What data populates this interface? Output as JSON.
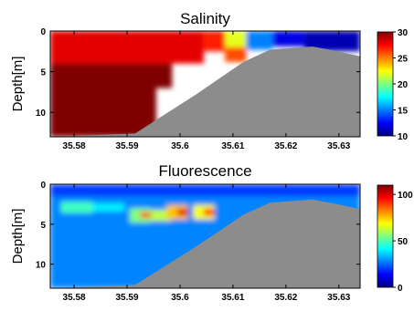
{
  "chart_data": [
    {
      "type": "heatmap",
      "title": "Salinity",
      "ylabel": "Depth[m]",
      "xlabel": "",
      "x_ticks": [
        35.58,
        35.59,
        35.6,
        35.61,
        35.62,
        35.63
      ],
      "x_tick_labels": [
        "35.58",
        "35.59",
        "35.6",
        "35.61",
        "35.62",
        "35.63"
      ],
      "xlim": [
        35.5755,
        35.634
      ],
      "y_ticks": [
        0,
        5,
        10
      ],
      "y_tick_labels": [
        "0",
        "5",
        "10"
      ],
      "ylim": [
        0,
        13
      ],
      "y_inverted": true,
      "colorbar": {
        "min": 10,
        "max": 30,
        "ticks": [
          10,
          15,
          20,
          25,
          30
        ],
        "tick_labels": [
          "10",
          "15",
          "20",
          "25",
          "30"
        ]
      },
      "seafloor": [
        {
          "x": 35.5755,
          "depth": 13
        },
        {
          "x": 35.5915,
          "depth": 12.6
        },
        {
          "x": 35.603,
          "depth": 7.8
        },
        {
          "x": 35.612,
          "depth": 3.8
        },
        {
          "x": 35.617,
          "depth": 2.3
        },
        {
          "x": 35.625,
          "depth": 1.9
        },
        {
          "x": 35.629,
          "depth": 2.4
        },
        {
          "x": 35.634,
          "depth": 3.1
        }
      ],
      "cells": [
        {
          "x0": 35.5755,
          "x1": 35.6045,
          "d0": 0,
          "d1": 4,
          "v": 28
        },
        {
          "x0": 35.5755,
          "x1": 35.5985,
          "d0": 4,
          "d1": 7,
          "v": 30
        },
        {
          "x0": 35.5755,
          "x1": 35.5955,
          "d0": 7,
          "d1": 13,
          "v": 30.5
        },
        {
          "x0": 35.6045,
          "x1": 35.6085,
          "d0": 0,
          "d1": 2.5,
          "v": 27
        },
        {
          "x0": 35.6085,
          "x1": 35.6125,
          "d0": 0,
          "d1": 2,
          "v": 22
        },
        {
          "x0": 35.6085,
          "x1": 35.6125,
          "d0": 2,
          "d1": 3.8,
          "v": 26
        },
        {
          "x0": 35.6125,
          "x1": 35.6175,
          "d0": 0,
          "d1": 2.3,
          "v": 15
        },
        {
          "x0": 35.6175,
          "x1": 35.6235,
          "d0": 0,
          "d1": 1.9,
          "v": 12
        },
        {
          "x0": 35.6235,
          "x1": 35.634,
          "d0": 0,
          "d1": 2.5,
          "v": 11
        }
      ]
    },
    {
      "type": "heatmap",
      "title": "Fluorescence",
      "ylabel": "Depth[m]",
      "xlabel": "",
      "x_ticks": [
        35.58,
        35.59,
        35.6,
        35.61,
        35.62,
        35.63
      ],
      "x_tick_labels": [
        "35.58",
        "35.59",
        "35.6",
        "35.61",
        "35.62",
        "35.63"
      ],
      "xlim": [
        35.5755,
        35.634
      ],
      "y_ticks": [
        0,
        5,
        10
      ],
      "y_tick_labels": [
        "0",
        "5",
        "10"
      ],
      "ylim": [
        0,
        13
      ],
      "y_inverted": true,
      "colorbar": {
        "min": 0,
        "max": 110,
        "ticks": [
          0,
          50,
          100
        ],
        "tick_labels": [
          "0",
          "50",
          "100"
        ]
      },
      "seafloor": [
        {
          "x": 35.5755,
          "depth": 13
        },
        {
          "x": 35.5915,
          "depth": 12.6
        },
        {
          "x": 35.603,
          "depth": 7.8
        },
        {
          "x": 35.612,
          "depth": 3.8
        },
        {
          "x": 35.617,
          "depth": 2.3
        },
        {
          "x": 35.625,
          "depth": 1.9
        },
        {
          "x": 35.629,
          "depth": 2.4
        },
        {
          "x": 35.634,
          "depth": 3.1
        }
      ],
      "cells": [
        {
          "x0": 35.5755,
          "x1": 35.634,
          "d0": 0,
          "d1": 13,
          "v": 28
        },
        {
          "x0": 35.5755,
          "x1": 35.634,
          "d0": 0,
          "d1": 1.5,
          "v": 20
        },
        {
          "x0": 35.5775,
          "x1": 35.5835,
          "d0": 2.2,
          "d1": 3.6,
          "v": 48
        },
        {
          "x0": 35.5835,
          "x1": 35.5895,
          "d0": 2.4,
          "d1": 3.4,
          "v": 40
        },
        {
          "x0": 35.5905,
          "x1": 35.5945,
          "d0": 3,
          "d1": 4.8,
          "v": 55
        },
        {
          "x0": 35.5945,
          "x1": 35.5985,
          "d0": 3.2,
          "d1": 4.6,
          "v": 62
        },
        {
          "x0": 35.5975,
          "x1": 35.6015,
          "d0": 2.6,
          "d1": 4.4,
          "v": 75
        },
        {
          "x0": 35.6025,
          "x1": 35.6065,
          "d0": 2.6,
          "d1": 4.4,
          "v": 68
        },
        {
          "x0": 35.5925,
          "x1": 35.5945,
          "d0": 3.5,
          "d1": 4.2,
          "v": 88
        },
        {
          "x0": 35.5995,
          "x1": 35.6015,
          "d0": 3.1,
          "d1": 3.9,
          "v": 100
        },
        {
          "x0": 35.6045,
          "x1": 35.6065,
          "d0": 3.1,
          "d1": 3.9,
          "v": 95
        }
      ]
    }
  ]
}
